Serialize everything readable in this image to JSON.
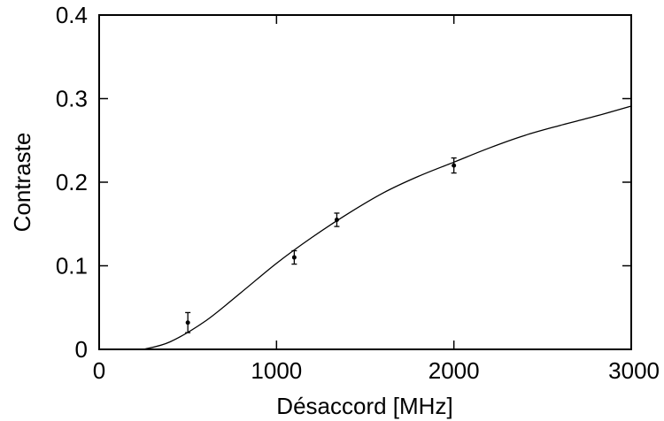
{
  "chart_data": {
    "type": "scatter",
    "title": "",
    "xlabel": "Désaccord  [MHz]",
    "ylabel": "Contraste",
    "xlim": [
      0,
      3000
    ],
    "ylim": [
      0,
      0.4
    ],
    "x_ticks": [
      0,
      1000,
      2000,
      3000
    ],
    "y_ticks": [
      0,
      0.1,
      0.2,
      0.3,
      0.4
    ],
    "x_tick_labels": [
      "0",
      "1000",
      "2000",
      "3000"
    ],
    "y_tick_labels": [
      "0",
      "0.1",
      "0.2",
      "0.3",
      "0.4"
    ],
    "grid": false,
    "series": [
      {
        "kind": "points_with_error_bars",
        "x": [
          500,
          1100,
          1340,
          2000
        ],
        "y": [
          0.032,
          0.11,
          0.155,
          0.22
        ],
        "yerr": [
          0.012,
          0.008,
          0.008,
          0.009
        ]
      },
      {
        "kind": "fit_line",
        "x": [
          250,
          400,
          600,
          800,
          1000,
          1200,
          1400,
          1600,
          1800,
          2000,
          2200,
          2400,
          2600,
          2800,
          3000
        ],
        "y": [
          0.0,
          0.009,
          0.034,
          0.068,
          0.103,
          0.134,
          0.162,
          0.187,
          0.207,
          0.224,
          0.241,
          0.256,
          0.268,
          0.279,
          0.291
        ]
      }
    ]
  }
}
